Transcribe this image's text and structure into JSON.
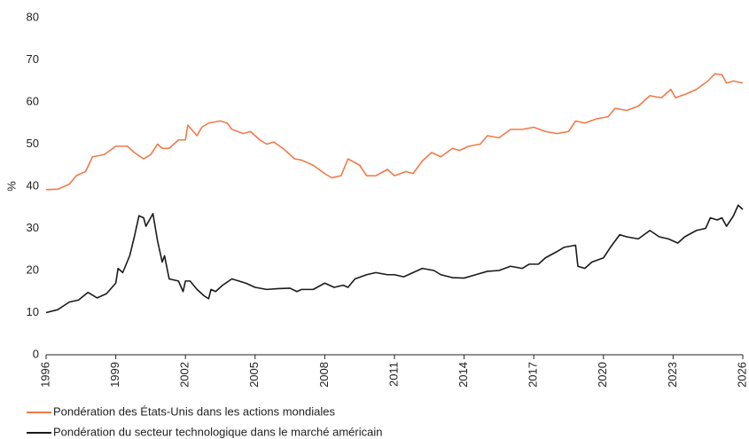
{
  "chart_data": {
    "type": "line",
    "ylabel": "%",
    "xlim": [
      1996,
      2026
    ],
    "xticks": [
      1996,
      1999,
      2002,
      2005,
      2008,
      2011,
      2014,
      2017,
      2020,
      2023,
      2026
    ],
    "ylim": [
      0,
      80
    ],
    "yticks": [
      0,
      10,
      20,
      30,
      40,
      50,
      60,
      70,
      80
    ],
    "grid": false,
    "legend": "bottom",
    "series": [
      {
        "name": "Pondération des États-Unis dans les actions mondiales",
        "color": "#f07a4a",
        "x": [
          1996,
          1996.5,
          1997,
          1997.3,
          1997.7,
          1998,
          1998.5,
          1999,
          1999.5,
          1999.8,
          2000.2,
          2000.5,
          2000.8,
          2001,
          2001.3,
          2001.7,
          2002,
          2002.1,
          2002.5,
          2002.7,
          2003,
          2003.5,
          2003.8,
          2004,
          2004.5,
          2004.8,
          2005.2,
          2005.5,
          2005.8,
          2006.2,
          2006.7,
          2007,
          2007.5,
          2008,
          2008.3,
          2008.7,
          2009,
          2009.5,
          2009.8,
          2010.2,
          2010.7,
          2011,
          2011.5,
          2011.8,
          2012.2,
          2012.6,
          2013,
          2013.5,
          2013.8,
          2014.2,
          2014.7,
          2015,
          2015.5,
          2016,
          2016.5,
          2017,
          2017.5,
          2018,
          2018.5,
          2018.8,
          2019.2,
          2019.7,
          2020.2,
          2020.5,
          2021,
          2021.5,
          2022,
          2022.5,
          2022.9,
          2023.1,
          2023.6,
          2024,
          2024.5,
          2024.8,
          2025.1,
          2025.3,
          2025.6,
          2026
        ],
        "values": [
          39.2,
          39.3,
          40.5,
          42.5,
          43.5,
          47,
          47.5,
          49.5,
          49.5,
          48,
          46.5,
          47.5,
          50,
          49,
          49,
          51,
          51,
          54.5,
          52,
          54,
          55,
          55.5,
          55,
          53.5,
          52.5,
          53,
          51,
          50,
          50.5,
          49,
          46.5,
          46.2,
          45,
          43,
          42,
          42.5,
          46.5,
          45,
          42.5,
          42.5,
          44,
          42.5,
          43.5,
          43,
          46,
          48,
          47,
          49,
          48.5,
          49.5,
          50,
          52,
          51.5,
          53.5,
          53.5,
          54,
          53,
          52.5,
          53,
          55.5,
          55,
          56,
          56.5,
          58.5,
          58,
          59,
          61.5,
          61,
          63,
          61,
          62,
          63,
          65,
          66.7,
          66.5,
          64.5,
          65,
          64.5
        ]
      },
      {
        "name": "Pondération du secteur technologique dans le marché américain",
        "color": "#1a1a1a",
        "x": [
          1996,
          1996.5,
          1997,
          1997.4,
          1997.8,
          1998.2,
          1998.6,
          1999,
          1999.1,
          1999.3,
          1999.6,
          1999.8,
          2000,
          2000.2,
          2000.3,
          2000.6,
          2000.8,
          2001,
          2001.1,
          2001.3,
          2001.7,
          2001.9,
          2002,
          2002.2,
          2002.5,
          2002.8,
          2003,
          2003.1,
          2003.3,
          2003.6,
          2004,
          2004.3,
          2004.6,
          2005,
          2005.5,
          2006,
          2006.5,
          2006.8,
          2007,
          2007.5,
          2008,
          2008.4,
          2008.8,
          2009,
          2009.3,
          2009.8,
          2010.2,
          2010.7,
          2011,
          2011.4,
          2011.8,
          2012.2,
          2012.7,
          2013,
          2013.5,
          2014,
          2014.5,
          2015,
          2015.5,
          2016,
          2016.5,
          2016.8,
          2017.2,
          2017.5,
          2018,
          2018.3,
          2018.8,
          2018.9,
          2019.2,
          2019.5,
          2020,
          2020.3,
          2020.7,
          2021,
          2021.5,
          2022,
          2022.4,
          2022.8,
          2023.2,
          2023.5,
          2024,
          2024.4,
          2024.6,
          2024.9,
          2025.1,
          2025.3,
          2025.6,
          2025.8,
          2026
        ],
        "values": [
          10,
          10.7,
          12.5,
          13,
          14.8,
          13.5,
          14.5,
          17,
          20.5,
          19.5,
          23.5,
          28,
          33,
          32.5,
          30.5,
          33.5,
          27,
          22,
          23.5,
          18,
          17.5,
          15,
          17.5,
          17.5,
          15.5,
          14,
          13.3,
          15.5,
          15,
          16.5,
          18,
          17.5,
          17,
          16,
          15.5,
          15.7,
          15.8,
          15,
          15.5,
          15.5,
          17,
          16,
          16.5,
          16,
          18,
          19,
          19.5,
          19,
          19,
          18.5,
          19.5,
          20.5,
          20,
          19,
          18.3,
          18.2,
          19,
          19.8,
          20,
          21,
          20.5,
          21.5,
          21.5,
          23,
          24.5,
          25.5,
          26,
          21,
          20.5,
          22,
          23,
          25.5,
          28.5,
          28,
          27.5,
          29.5,
          28,
          27.5,
          26.5,
          28,
          29.5,
          30,
          32.5,
          32,
          32.5,
          30.5,
          33,
          35.5,
          34.5
        ]
      }
    ]
  }
}
